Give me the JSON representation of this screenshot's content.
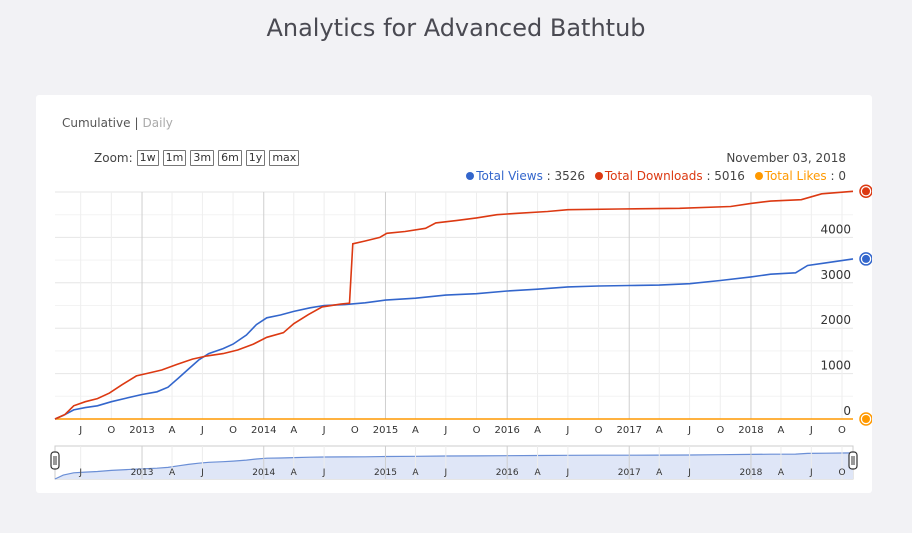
{
  "page": {
    "title": "Analytics for Advanced Bathtub"
  },
  "controls": {
    "cumulative_label": "Cumulative",
    "separator": "|",
    "daily_label": "Daily",
    "zoom_label": "Zoom:",
    "zoom_buttons": [
      "1w",
      "1m",
      "3m",
      "6m",
      "1y",
      "max"
    ]
  },
  "header": {
    "date": "November 03, 2018"
  },
  "legend": {
    "views": {
      "label": "Total Views",
      "value": "3526"
    },
    "downloads": {
      "label": "Total Downloads",
      "value": "5016"
    },
    "likes": {
      "label": "Total Likes",
      "value": "0"
    }
  },
  "colors": {
    "views": "#3366cc",
    "downloads": "#dc3912",
    "likes": "#ff9900"
  },
  "chart_data": {
    "type": "line",
    "title": "",
    "xlabel": "",
    "ylabel": "",
    "ylim": [
      0,
      5000
    ],
    "y_ticks": [
      0,
      1000,
      2000,
      3000,
      4000
    ],
    "x_range": [
      "2012-04-15",
      "2018-11-03"
    ],
    "x_tick_labels": [
      {
        "label": "J",
        "date": "2012-07-01"
      },
      {
        "label": "O",
        "date": "2012-10-01"
      },
      {
        "label": "2013",
        "date": "2013-01-01"
      },
      {
        "label": "A",
        "date": "2013-04-01"
      },
      {
        "label": "J",
        "date": "2013-07-01"
      },
      {
        "label": "O",
        "date": "2013-10-01"
      },
      {
        "label": "2014",
        "date": "2014-01-01"
      },
      {
        "label": "A",
        "date": "2014-04-01"
      },
      {
        "label": "J",
        "date": "2014-07-01"
      },
      {
        "label": "O",
        "date": "2014-10-01"
      },
      {
        "label": "2015",
        "date": "2015-01-01"
      },
      {
        "label": "A",
        "date": "2015-04-01"
      },
      {
        "label": "J",
        "date": "2015-07-01"
      },
      {
        "label": "O",
        "date": "2015-10-01"
      },
      {
        "label": "2016",
        "date": "2016-01-01"
      },
      {
        "label": "A",
        "date": "2016-04-01"
      },
      {
        "label": "J",
        "date": "2016-07-01"
      },
      {
        "label": "O",
        "date": "2016-10-01"
      },
      {
        "label": "2017",
        "date": "2017-01-01"
      },
      {
        "label": "A",
        "date": "2017-04-01"
      },
      {
        "label": "J",
        "date": "2017-07-01"
      },
      {
        "label": "O",
        "date": "2017-10-01"
      },
      {
        "label": "2018",
        "date": "2018-01-01"
      },
      {
        "label": "A",
        "date": "2018-04-01"
      },
      {
        "label": "J",
        "date": "2018-07-01"
      },
      {
        "label": "O",
        "date": "2018-10-01"
      }
    ],
    "navigator_tick_labels": [
      {
        "label": "J",
        "date": "2012-07-01"
      },
      {
        "label": "2013",
        "date": "2013-01-01"
      },
      {
        "label": "A",
        "date": "2013-04-01"
      },
      {
        "label": "J",
        "date": "2013-07-01"
      },
      {
        "label": "2014",
        "date": "2014-01-01"
      },
      {
        "label": "A",
        "date": "2014-04-01"
      },
      {
        "label": "J",
        "date": "2014-07-01"
      },
      {
        "label": "2015",
        "date": "2015-01-01"
      },
      {
        "label": "A",
        "date": "2015-04-01"
      },
      {
        "label": "J",
        "date": "2015-07-01"
      },
      {
        "label": "2016",
        "date": "2016-01-01"
      },
      {
        "label": "A",
        "date": "2016-04-01"
      },
      {
        "label": "J",
        "date": "2016-07-01"
      },
      {
        "label": "2017",
        "date": "2017-01-01"
      },
      {
        "label": "A",
        "date": "2017-04-01"
      },
      {
        "label": "J",
        "date": "2017-07-01"
      },
      {
        "label": "2018",
        "date": "2018-01-01"
      },
      {
        "label": "A",
        "date": "2018-04-01"
      },
      {
        "label": "J",
        "date": "2018-07-01"
      },
      {
        "label": "O",
        "date": "2018-10-01"
      }
    ],
    "series": [
      {
        "name": "Total Downloads",
        "color": "#dc3912",
        "points": [
          [
            "2012-04-15",
            0
          ],
          [
            "2012-05-15",
            100
          ],
          [
            "2012-06-10",
            290
          ],
          [
            "2012-07-15",
            380
          ],
          [
            "2012-08-20",
            450
          ],
          [
            "2012-09-25",
            570
          ],
          [
            "2012-11-01",
            750
          ],
          [
            "2012-12-15",
            950
          ],
          [
            "2013-01-20",
            1010
          ],
          [
            "2013-03-01",
            1080
          ],
          [
            "2013-04-15",
            1200
          ],
          [
            "2013-06-01",
            1320
          ],
          [
            "2013-07-15",
            1390
          ],
          [
            "2013-09-01",
            1440
          ],
          [
            "2013-10-15",
            1520
          ],
          [
            "2013-12-01",
            1650
          ],
          [
            "2014-01-10",
            1800
          ],
          [
            "2014-03-01",
            1900
          ],
          [
            "2014-04-01",
            2100
          ],
          [
            "2014-05-15",
            2300
          ],
          [
            "2014-06-25",
            2470
          ],
          [
            "2014-08-20",
            2530
          ],
          [
            "2014-09-15",
            2550
          ],
          [
            "2014-09-25",
            3860
          ],
          [
            "2014-11-01",
            3920
          ],
          [
            "2014-12-15",
            4000
          ],
          [
            "2015-01-05",
            4090
          ],
          [
            "2015-03-01",
            4130
          ],
          [
            "2015-05-01",
            4200
          ],
          [
            "2015-06-01",
            4320
          ],
          [
            "2015-08-01",
            4370
          ],
          [
            "2015-10-01",
            4430
          ],
          [
            "2015-12-01",
            4500
          ],
          [
            "2016-02-01",
            4530
          ],
          [
            "2016-05-01",
            4570
          ],
          [
            "2016-07-01",
            4610
          ],
          [
            "2016-12-01",
            4625
          ],
          [
            "2017-06-01",
            4640
          ],
          [
            "2017-11-01",
            4680
          ],
          [
            "2018-01-01",
            4750
          ],
          [
            "2018-03-01",
            4800
          ],
          [
            "2018-06-01",
            4830
          ],
          [
            "2018-08-01",
            4960
          ],
          [
            "2018-11-03",
            5016
          ]
        ]
      },
      {
        "name": "Total Views",
        "color": "#3366cc",
        "points": [
          [
            "2012-04-15",
            0
          ],
          [
            "2012-05-10",
            80
          ],
          [
            "2012-06-10",
            200
          ],
          [
            "2012-07-15",
            250
          ],
          [
            "2012-08-20",
            290
          ],
          [
            "2012-10-01",
            380
          ],
          [
            "2012-11-15",
            460
          ],
          [
            "2013-01-01",
            540
          ],
          [
            "2013-02-15",
            600
          ],
          [
            "2013-03-20",
            700
          ],
          [
            "2013-04-20",
            900
          ],
          [
            "2013-05-20",
            1100
          ],
          [
            "2013-06-20",
            1300
          ],
          [
            "2013-07-20",
            1440
          ],
          [
            "2013-09-01",
            1550
          ],
          [
            "2013-10-01",
            1650
          ],
          [
            "2013-11-10",
            1850
          ],
          [
            "2013-12-10",
            2080
          ],
          [
            "2014-01-10",
            2230
          ],
          [
            "2014-02-20",
            2290
          ],
          [
            "2014-04-01",
            2370
          ],
          [
            "2014-05-20",
            2450
          ],
          [
            "2014-07-01",
            2500
          ],
          [
            "2014-09-01",
            2520
          ],
          [
            "2014-11-01",
            2560
          ],
          [
            "2015-01-01",
            2620
          ],
          [
            "2015-04-01",
            2660
          ],
          [
            "2015-07-01",
            2730
          ],
          [
            "2015-10-01",
            2760
          ],
          [
            "2016-01-01",
            2820
          ],
          [
            "2016-04-01",
            2860
          ],
          [
            "2016-07-01",
            2910
          ],
          [
            "2016-10-01",
            2930
          ],
          [
            "2017-01-01",
            2940
          ],
          [
            "2017-04-01",
            2950
          ],
          [
            "2017-07-01",
            2980
          ],
          [
            "2017-10-01",
            3050
          ],
          [
            "2018-01-01",
            3130
          ],
          [
            "2018-03-01",
            3190
          ],
          [
            "2018-05-15",
            3220
          ],
          [
            "2018-06-20",
            3380
          ],
          [
            "2018-08-15",
            3440
          ],
          [
            "2018-11-03",
            3526
          ]
        ]
      },
      {
        "name": "Total Likes",
        "color": "#ff9900",
        "points": [
          [
            "2012-04-15",
            0
          ],
          [
            "2018-11-03",
            0
          ]
        ]
      }
    ]
  }
}
